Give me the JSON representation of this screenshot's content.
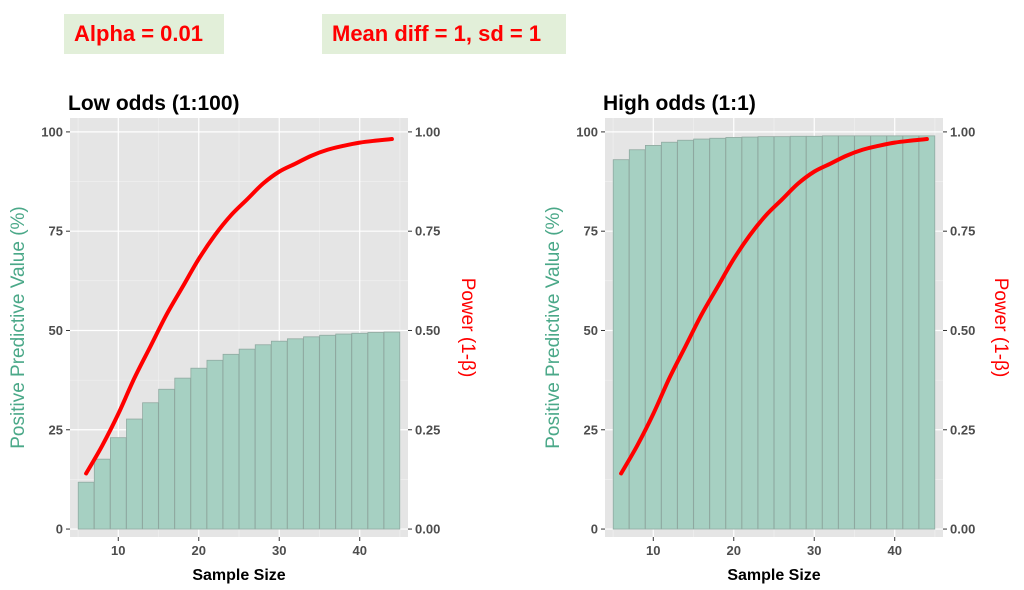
{
  "badges": {
    "alpha": "Alpha = 0.01",
    "mean": "Mean diff = 1, sd = 1"
  },
  "colors": {
    "bar_fill": "#a6d0c2",
    "bar_stroke": "#8fa9a0",
    "power_line": "#ff0000",
    "panel_bg": "#e5e5e5",
    "left_axis_title": "#4aa888",
    "right_axis_title": "#ff0000"
  },
  "chart_data": [
    {
      "type": "bar",
      "title": "Low odds (1:100)",
      "xlabel": "Sample Size",
      "ylabel": "Positive Predictive Value (%)",
      "y2label": "Power (1-β)",
      "xlim": [
        4,
        46
      ],
      "ylim": [
        -2,
        103.5
      ],
      "y2lim": [
        -0.02,
        1.035
      ],
      "xticks": [
        10,
        20,
        30,
        40
      ],
      "yticks": [
        0,
        25,
        50,
        75,
        100
      ],
      "y2ticks": [
        0.0,
        0.25,
        0.5,
        0.75,
        1.0
      ],
      "y2ticklabels": [
        "0.00",
        "0.25",
        "0.50",
        "0.75",
        "1.00"
      ],
      "grid": true,
      "x": [
        6,
        8,
        10,
        12,
        14,
        16,
        18,
        20,
        22,
        24,
        26,
        28,
        30,
        32,
        34,
        36,
        38,
        40,
        42,
        44
      ],
      "series": [
        {
          "kind": "bar",
          "axis": "left",
          "values": [
            11.8,
            17.6,
            23.0,
            27.7,
            31.8,
            35.2,
            38.0,
            40.5,
            42.5,
            44.0,
            45.3,
            46.4,
            47.3,
            47.9,
            48.4,
            48.8,
            49.1,
            49.3,
            49.5,
            49.6
          ]
        },
        {
          "kind": "line",
          "axis": "right",
          "values": [
            0.14,
            0.21,
            0.29,
            0.38,
            0.46,
            0.54,
            0.61,
            0.68,
            0.74,
            0.79,
            0.83,
            0.87,
            0.9,
            0.92,
            0.94,
            0.955,
            0.965,
            0.973,
            0.978,
            0.982
          ]
        }
      ]
    },
    {
      "type": "bar",
      "title": "High odds (1:1)",
      "xlabel": "Sample Size",
      "ylabel": "Positive Predictive Value (%)",
      "y2label": "Power (1-β)",
      "xlim": [
        4,
        46
      ],
      "ylim": [
        -2,
        103.5
      ],
      "y2lim": [
        -0.02,
        1.035
      ],
      "xticks": [
        10,
        20,
        30,
        40
      ],
      "yticks": [
        0,
        25,
        50,
        75,
        100
      ],
      "y2ticks": [
        0.0,
        0.25,
        0.5,
        0.75,
        1.0
      ],
      "y2ticklabels": [
        "0.00",
        "0.25",
        "0.50",
        "0.75",
        "1.00"
      ],
      "grid": true,
      "x": [
        6,
        8,
        10,
        12,
        14,
        16,
        18,
        20,
        22,
        24,
        26,
        28,
        30,
        32,
        34,
        36,
        38,
        40,
        42,
        44
      ],
      "series": [
        {
          "kind": "bar",
          "axis": "left",
          "values": [
            93.0,
            95.5,
            96.6,
            97.4,
            97.9,
            98.2,
            98.4,
            98.6,
            98.7,
            98.8,
            98.8,
            98.9,
            98.9,
            99.0,
            99.0,
            99.0,
            99.0,
            99.0,
            99.0,
            99.0
          ]
        },
        {
          "kind": "line",
          "axis": "right",
          "values": [
            0.14,
            0.21,
            0.29,
            0.38,
            0.46,
            0.54,
            0.61,
            0.68,
            0.74,
            0.79,
            0.83,
            0.87,
            0.9,
            0.92,
            0.94,
            0.955,
            0.965,
            0.973,
            0.978,
            0.982
          ]
        }
      ]
    }
  ]
}
